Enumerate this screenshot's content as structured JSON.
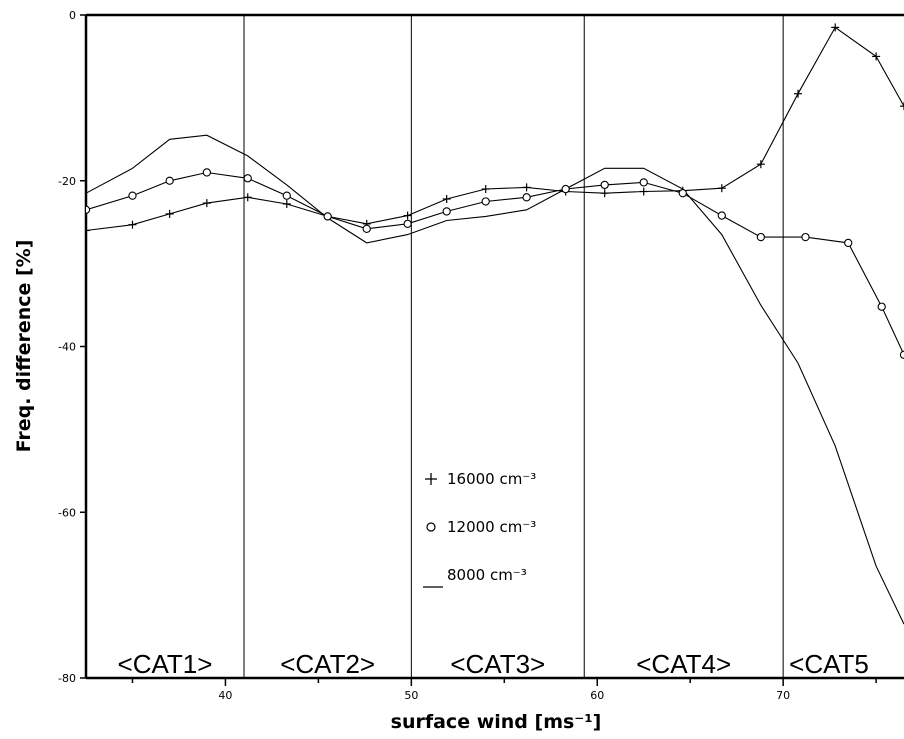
{
  "chart_data": {
    "type": "line",
    "title": "",
    "xlabel": "surface wind [ms⁻¹]",
    "ylabel": "Freq. difference [%]",
    "xlim": [
      32.5,
      76.5
    ],
    "ylim": [
      -80,
      0
    ],
    "xticks": [
      "40",
      "50",
      "60",
      "70"
    ],
    "yticks": [
      "0",
      "-20",
      "-40",
      "-60",
      "-80"
    ],
    "category_boundaries": [
      41,
      50,
      59.3,
      70
    ],
    "categories": [
      "<CAT1>",
      "<CAT2>",
      "<CAT3>",
      "<CAT4>",
      "<CAT5"
    ],
    "legend_position": "center-left",
    "series": [
      {
        "name": "16000 cm⁻³",
        "marker": "+",
        "points": [
          [
            32.5,
            -26
          ],
          [
            35,
            -25.3
          ],
          [
            37,
            -24
          ],
          [
            39,
            -22.7
          ],
          [
            41.2,
            -22
          ],
          [
            43.3,
            -22.8
          ],
          [
            45.5,
            -24.3
          ],
          [
            47.6,
            -25.2
          ],
          [
            49.8,
            -24.2
          ],
          [
            51.9,
            -22.2
          ],
          [
            54,
            -21
          ],
          [
            56.2,
            -20.8
          ],
          [
            58.3,
            -21.3
          ],
          [
            60.4,
            -21.5
          ],
          [
            62.5,
            -21.3
          ],
          [
            64.6,
            -21.2
          ],
          [
            66.7,
            -20.9
          ],
          [
            68.8,
            -18
          ],
          [
            70.8,
            -9.5
          ],
          [
            72.8,
            -1.5
          ],
          [
            75,
            -5
          ],
          [
            76.5,
            -11
          ]
        ]
      },
      {
        "name": "12000 cm⁻³",
        "marker": "o",
        "points": [
          [
            32.5,
            -23.5
          ],
          [
            35,
            -21.8
          ],
          [
            37,
            -20
          ],
          [
            39,
            -19
          ],
          [
            41.2,
            -19.7
          ],
          [
            43.3,
            -21.8
          ],
          [
            45.5,
            -24.3
          ],
          [
            47.6,
            -25.8
          ],
          [
            49.8,
            -25.2
          ],
          [
            51.9,
            -23.7
          ],
          [
            54,
            -22.5
          ],
          [
            56.2,
            -22
          ],
          [
            58.3,
            -21
          ],
          [
            60.4,
            -20.5
          ],
          [
            62.5,
            -20.2
          ],
          [
            64.6,
            -21.5
          ],
          [
            66.7,
            -24.2
          ],
          [
            68.8,
            -26.8
          ],
          [
            71.2,
            -26.8
          ],
          [
            73.5,
            -27.5
          ],
          [
            75.3,
            -35.2
          ],
          [
            76.5,
            -41
          ]
        ]
      },
      {
        "name": "8000 cm⁻³",
        "marker": "none",
        "points": [
          [
            32.5,
            -21.5
          ],
          [
            35,
            -18.5
          ],
          [
            37,
            -15
          ],
          [
            39,
            -14.5
          ],
          [
            41.2,
            -17
          ],
          [
            43.3,
            -20.5
          ],
          [
            45.5,
            -24.5
          ],
          [
            47.6,
            -27.5
          ],
          [
            49.8,
            -26.5
          ],
          [
            51.9,
            -24.8
          ],
          [
            54,
            -24.3
          ],
          [
            56.2,
            -23.5
          ],
          [
            58.3,
            -21
          ],
          [
            60.4,
            -18.5
          ],
          [
            62.5,
            -18.5
          ],
          [
            64.6,
            -21
          ],
          [
            66.7,
            -26.5
          ],
          [
            68.8,
            -35
          ],
          [
            70.8,
            -42
          ],
          [
            72.8,
            -52
          ],
          [
            75,
            -66.5
          ],
          [
            76.5,
            -73.5
          ]
        ]
      }
    ]
  }
}
